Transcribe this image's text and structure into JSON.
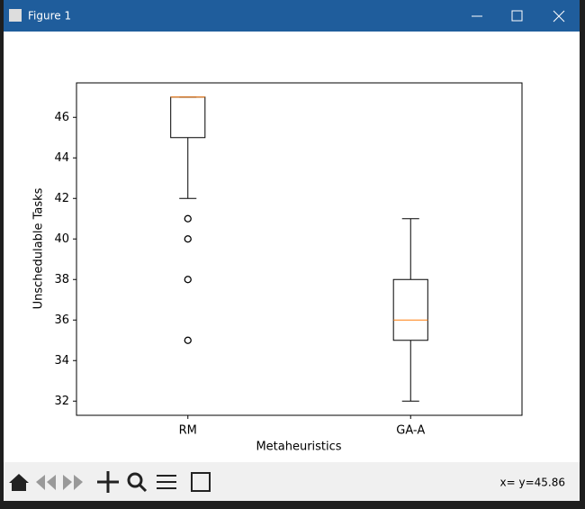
{
  "window": {
    "title": "Figure 1",
    "status": "x= y=45.86"
  },
  "chart_data": {
    "type": "boxplot",
    "xlabel": "Metaheuristics",
    "ylabel": "Unschedulable Tasks",
    "categories": [
      "RM",
      "GA-A"
    ],
    "boxes": [
      {
        "whislo": 42,
        "q1": 45,
        "median": 47,
        "q3": 47,
        "whishi": 47,
        "fliers": [
          41,
          40,
          38,
          35
        ]
      },
      {
        "whislo": 32,
        "q1": 35,
        "median": 36,
        "q3": 38,
        "whishi": 41,
        "fliers": []
      }
    ],
    "color": "#000000",
    "median_color": "#ff7f0e",
    "ylim": [
      31.3,
      47.7
    ],
    "yticks": [
      32,
      34,
      36,
      38,
      40,
      42,
      44,
      46
    ]
  }
}
